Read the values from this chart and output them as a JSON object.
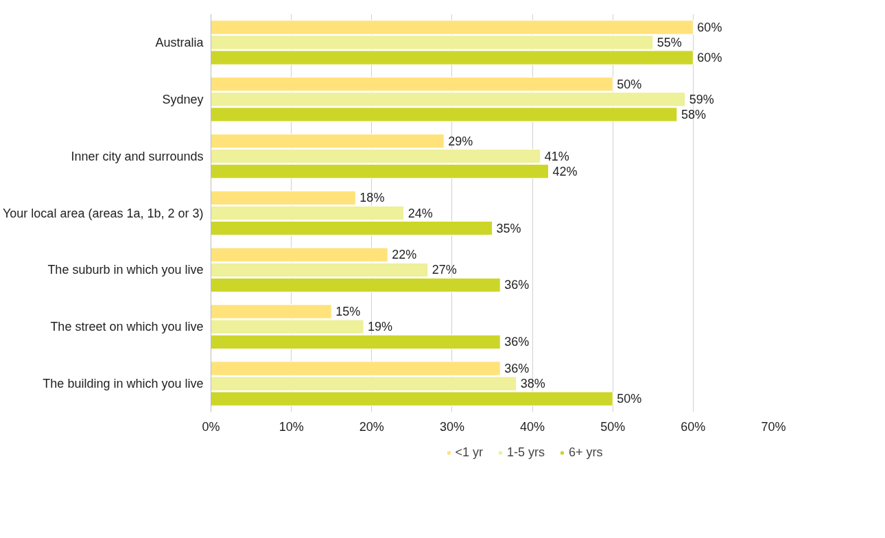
{
  "chart_data": {
    "type": "bar",
    "orientation": "horizontal",
    "categories": [
      "Australia",
      "Sydney",
      "Inner city and surrounds",
      "Your local area (areas 1a, 1b, 2 or 3)",
      "The suburb in which you live",
      "The street on which you live",
      "The building in which you live"
    ],
    "series": [
      {
        "name": "<1 yr",
        "color": "#ffe27a",
        "values": [
          60,
          50,
          29,
          18,
          22,
          15,
          36
        ],
        "value_labels": [
          "60%",
          "50%",
          "29%",
          "18%",
          "22%",
          "15%",
          "36%"
        ]
      },
      {
        "name": "1-5 yrs",
        "color": "#eef09a",
        "values": [
          55,
          59,
          41,
          24,
          27,
          19,
          38
        ],
        "value_labels": [
          "55%",
          "59%",
          "41%",
          "24%",
          "27%",
          "19%",
          "38%"
        ]
      },
      {
        "name": "6+ yrs",
        "color": "#ccd629",
        "values": [
          60,
          58,
          42,
          35,
          36,
          36,
          50
        ],
        "value_labels": [
          "60%",
          "58%",
          "42%",
          "35%",
          "36%",
          "36%",
          "50%"
        ]
      }
    ],
    "xlim": [
      0,
      70
    ],
    "xticks": [
      {
        "value": 0,
        "label": "0%"
      },
      {
        "value": 10,
        "label": "10%"
      },
      {
        "value": 20,
        "label": "20%"
      },
      {
        "value": 30,
        "label": "30%"
      },
      {
        "value": 40,
        "label": "40%"
      },
      {
        "value": 50,
        "label": "50%"
      },
      {
        "value": 60,
        "label": "60%"
      },
      {
        "value": 70,
        "label": "70%"
      }
    ],
    "grid": "x",
    "legend": "bottom"
  }
}
